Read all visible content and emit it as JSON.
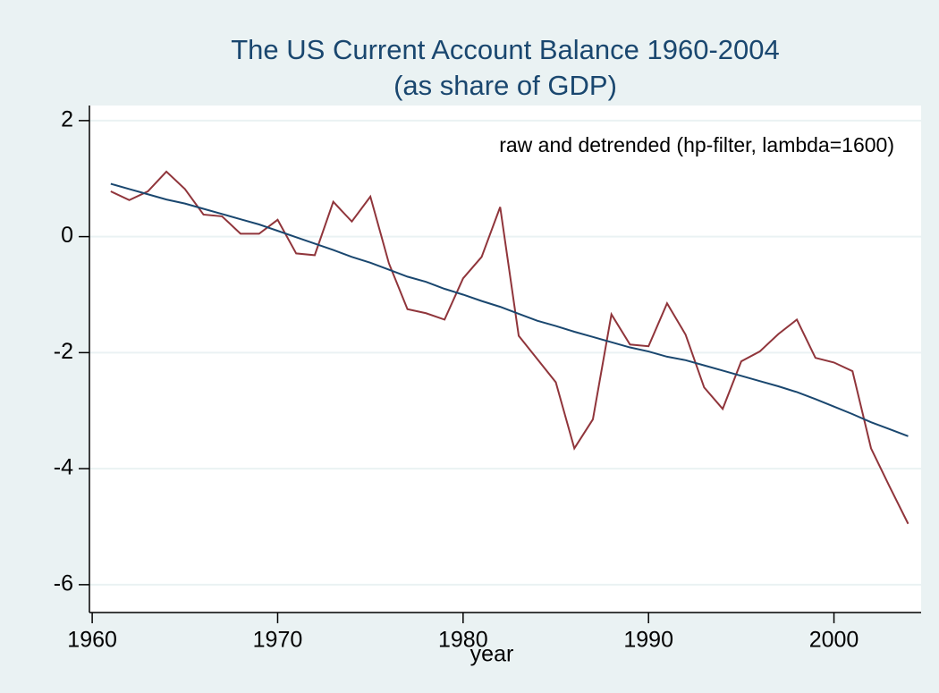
{
  "chart_data": {
    "type": "line",
    "title": [
      "The US Current Account Balance 1960-2004",
      "(as share of GDP)"
    ],
    "annotation": "raw and detrended (hp-filter, lambda=1600)",
    "x_label": "year",
    "x": [
      1961,
      1962,
      1963,
      1964,
      1965,
      1966,
      1967,
      1968,
      1969,
      1970,
      1971,
      1972,
      1973,
      1974,
      1975,
      1976,
      1977,
      1978,
      1979,
      1980,
      1981,
      1982,
      1983,
      1984,
      1985,
      1986,
      1987,
      1988,
      1989,
      1990,
      1991,
      1992,
      1993,
      1994,
      1995,
      1996,
      1997,
      1998,
      1999,
      2000,
      2001,
      2002,
      2003,
      2004
    ],
    "series": [
      {
        "color": "#90353b",
        "values": [
          0.78,
          0.63,
          0.78,
          1.12,
          0.82,
          0.38,
          0.35,
          0.05,
          0.05,
          0.29,
          -0.29,
          -0.32,
          0.6,
          0.26,
          0.69,
          -0.46,
          -1.25,
          -1.32,
          -1.43,
          -0.72,
          -0.35,
          0.51,
          -1.71,
          -2.11,
          -2.51,
          -3.65,
          -3.15,
          -1.34,
          -1.86,
          -1.89,
          -1.15,
          -1.69,
          -2.6,
          -2.97,
          -2.15,
          -1.98,
          -1.68,
          -1.43,
          -2.09,
          -2.17,
          -2.32,
          -3.65,
          -4.31,
          -4.95
        ]
      },
      {
        "color": "#1a476f",
        "values": [
          0.91,
          0.82,
          0.73,
          0.64,
          0.57,
          0.48,
          0.39,
          0.3,
          0.21,
          0.1,
          -0.01,
          -0.12,
          -0.23,
          -0.35,
          -0.45,
          -0.57,
          -0.69,
          -0.78,
          -0.9,
          -1.0,
          -1.11,
          -1.21,
          -1.33,
          -1.45,
          -1.54,
          -1.64,
          -1.73,
          -1.82,
          -1.91,
          -1.98,
          -2.07,
          -2.13,
          -2.22,
          -2.31,
          -2.4,
          -2.49,
          -2.58,
          -2.68,
          -2.8,
          -2.93,
          -3.06,
          -3.2,
          -3.32,
          -3.44
        ]
      }
    ],
    "xlim": [
      1959.85,
      2004.7
    ],
    "xticks": [
      1960,
      1970,
      1980,
      1990,
      2000
    ],
    "ylim": [
      -6.48,
      2.26
    ],
    "yticks": [
      -6,
      -4,
      -2,
      0,
      2
    ],
    "grid": true
  }
}
